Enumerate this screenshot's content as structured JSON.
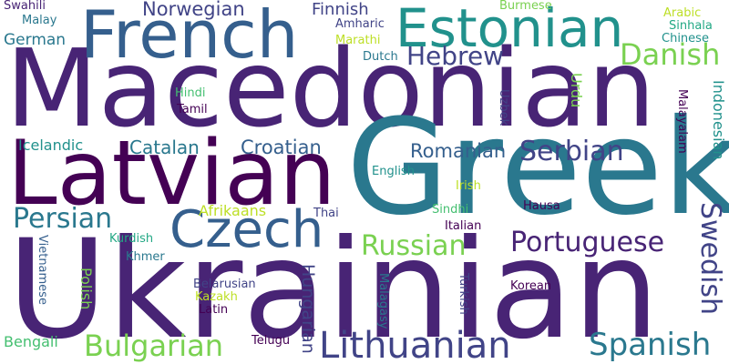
{
  "words": [
    {
      "text": "Macedonian",
      "color": "#482475"
    },
    {
      "text": "Ukrainian",
      "color": "#482475"
    },
    {
      "text": "Greek",
      "color": "#2a788e"
    },
    {
      "text": "Latvian",
      "color": "#440154"
    },
    {
      "text": "French",
      "color": "#355f8d"
    },
    {
      "text": "Estonian",
      "color": "#21918c"
    },
    {
      "text": "Czech",
      "color": "#355f8d"
    },
    {
      "text": "Lithuanian",
      "color": "#414487"
    },
    {
      "text": "Bulgarian",
      "color": "#7ad151"
    },
    {
      "text": "Spanish",
      "color": "#2a788e"
    },
    {
      "text": "Portuguese",
      "color": "#482475"
    },
    {
      "text": "Russian",
      "color": "#7ad151"
    },
    {
      "text": "Serbian",
      "color": "#414487"
    },
    {
      "text": "Persian",
      "color": "#2a788e"
    },
    {
      "text": "Swedish",
      "color": "#414487"
    },
    {
      "text": "Danish",
      "color": "#7ad151"
    },
    {
      "text": "Hebrew",
      "color": "#414487"
    },
    {
      "text": "Norwegian",
      "color": "#414487"
    },
    {
      "text": "Romanian",
      "color": "#355f8d"
    },
    {
      "text": "Croatian",
      "color": "#355f8d"
    },
    {
      "text": "Catalan",
      "color": "#2a788e"
    },
    {
      "text": "Hungarian",
      "color": "#414487"
    },
    {
      "text": "Finnish",
      "color": "#414487"
    },
    {
      "text": "German",
      "color": "#2a788e"
    },
    {
      "text": "Afrikaans",
      "color": "#bddf26"
    },
    {
      "text": "Icelandic",
      "color": "#21918c"
    },
    {
      "text": "Polish",
      "color": "#7ad151"
    },
    {
      "text": "Bengali",
      "color": "#44bf70"
    },
    {
      "text": "Urdu",
      "color": "#7ad151"
    },
    {
      "text": "Indonesian",
      "color": "#21918c"
    },
    {
      "text": "Hindi",
      "color": "#44bf70"
    },
    {
      "text": "Tamil",
      "color": "#440154"
    },
    {
      "text": "Amharic",
      "color": "#414487"
    },
    {
      "text": "Marathi",
      "color": "#bddf26"
    },
    {
      "text": "Dutch",
      "color": "#2a788e"
    },
    {
      "text": "Swahili",
      "color": "#482475"
    },
    {
      "text": "Malay",
      "color": "#2a788e"
    },
    {
      "text": "Burmese",
      "color": "#7ad151"
    },
    {
      "text": "Arabic",
      "color": "#bddf26"
    },
    {
      "text": "Sinhala",
      "color": "#22a884"
    },
    {
      "text": "Chinese",
      "color": "#21918c"
    },
    {
      "text": "Uzbek",
      "color": "#414487"
    },
    {
      "text": "Malayalam",
      "color": "#440154"
    },
    {
      "text": "English",
      "color": "#21918c"
    },
    {
      "text": "Irish",
      "color": "#bddf26"
    },
    {
      "text": "Sindhi",
      "color": "#44bf70"
    },
    {
      "text": "Italian",
      "color": "#440154"
    },
    {
      "text": "Hausa",
      "color": "#440154"
    },
    {
      "text": "Thai",
      "color": "#414487"
    },
    {
      "text": "Kurdish",
      "color": "#22a884"
    },
    {
      "text": "Khmer",
      "color": "#2a788e"
    },
    {
      "text": "Vietnamese",
      "color": "#355f8d"
    },
    {
      "text": "Belarusian",
      "color": "#414487"
    },
    {
      "text": "Kazakh",
      "color": "#bddf26"
    },
    {
      "text": "Latin",
      "color": "#440154"
    },
    {
      "text": "Malagasy",
      "color": "#2a788e"
    },
    {
      "text": "Turkish",
      "color": "#414487"
    },
    {
      "text": "Korean",
      "color": "#440154"
    },
    {
      "text": "Telugu",
      "color": "#440154"
    }
  ]
}
